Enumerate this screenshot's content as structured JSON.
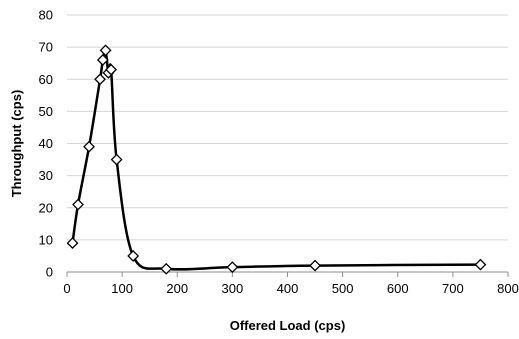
{
  "chart_data": {
    "type": "scatter",
    "title": "",
    "xlabel": "Offered Load (cps)",
    "ylabel": "Throughput (cps)",
    "xlim": [
      0,
      800
    ],
    "ylim": [
      0,
      80
    ],
    "xticks": [
      0,
      100,
      200,
      300,
      400,
      500,
      600,
      700,
      800
    ],
    "yticks": [
      0,
      10,
      20,
      30,
      40,
      50,
      60,
      70,
      80
    ],
    "grid": "horizontal",
    "legend": "none",
    "line_style": "smooth",
    "marker": "diamond",
    "color": "#000000",
    "series": [
      {
        "x": [
          10,
          20,
          40,
          60,
          65,
          70,
          75,
          80,
          90,
          120,
          180,
          300,
          450,
          750
        ],
        "y": [
          9,
          21,
          39,
          60,
          66,
          69,
          62,
          63,
          35,
          5,
          1,
          1.5,
          2,
          2.3
        ]
      }
    ]
  }
}
